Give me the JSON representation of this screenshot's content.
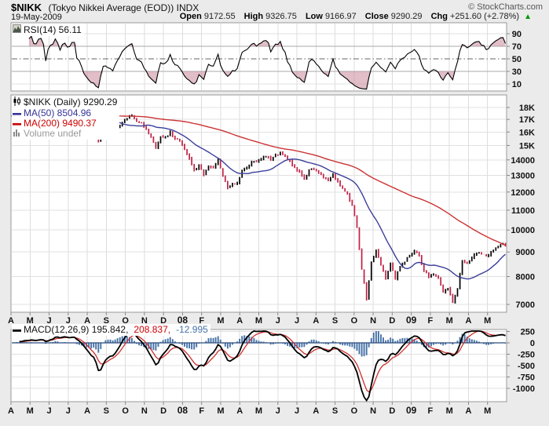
{
  "header": {
    "symbol": "$NIKK",
    "name": "(Tokyo Nikkei Average (EOD)) INDX",
    "date": "19-May-2009",
    "copyright": "© StockCharts.com",
    "quote": [
      {
        "label": "Open",
        "value": "9172.55"
      },
      {
        "label": "High",
        "value": "9326.75"
      },
      {
        "label": "Low",
        "value": "9166.97"
      },
      {
        "label": "Close",
        "value": "9290.29"
      },
      {
        "label": "Chg",
        "value": "+251.60 (+2.78%)"
      }
    ],
    "change_direction": "up"
  },
  "panels": {
    "rsi": {
      "legend": "RSI(14) 56.11"
    },
    "price": {
      "symbol_line": "$NIKK (Daily) 9290.29",
      "ma50_line": "MA(50) 8504.96",
      "ma200_line": "MA(200) 9490.37",
      "volume_line": "Volume undef"
    },
    "macd": {
      "main": "MACD(12,26,9) 195.842,",
      "signal": "208.837,",
      "histogram": "-12.995"
    }
  },
  "colors": {
    "candle_up": "#000000",
    "candle_down": "#bf2145",
    "ma50": "#3a3f99",
    "ma200": "#cc3333",
    "macd_line": "#000000",
    "macd_signal": "#d03030",
    "macd_histogram": "#4572a7",
    "macd_zero_line": "#2b4b7e",
    "rsi_line": "#000000",
    "oversold_fill": "#c9899b",
    "change_up": "#009900"
  },
  "chart_data": [
    {
      "panel": "rsi",
      "type": "line",
      "indicator": "RSI(14)",
      "last_value": 56.11,
      "ylim": [
        0,
        100
      ],
      "yticks": [
        90,
        70,
        50,
        30,
        10
      ],
      "overbought": 70,
      "oversold": 30,
      "midline": 50
    },
    {
      "panel": "price",
      "type": "candlestick",
      "symbol": "$NIKK",
      "timeframe": "Daily",
      "last_close": 9290.29,
      "ma50_last": 8504.96,
      "ma200_last": 9490.37,
      "volume": "undef",
      "log_scale": true,
      "yticks": [
        {
          "label": "18K",
          "value": 18000
        },
        {
          "label": "17K",
          "value": 17000
        },
        {
          "label": "16K",
          "value": 16000
        },
        {
          "label": "15K",
          "value": 15000
        },
        {
          "label": "14000",
          "value": 14000
        },
        {
          "label": "13000",
          "value": 13000
        },
        {
          "label": "12000",
          "value": 12000
        },
        {
          "label": "11000",
          "value": 11000
        },
        {
          "label": "10000",
          "value": 10000
        },
        {
          "label": "9000",
          "value": 9000
        },
        {
          "label": "8000",
          "value": 8000
        },
        {
          "label": "7000",
          "value": 7000
        }
      ],
      "x_labels": [
        "A",
        "M",
        "J",
        "J",
        "A",
        "S",
        "O",
        "N",
        "D",
        "08",
        "F",
        "M",
        "A",
        "M",
        "J",
        "J",
        "A",
        "S",
        "O",
        "N",
        "D",
        "09",
        "F",
        "M",
        "A",
        "M"
      ],
      "closes": [
        17310,
        17450,
        17400,
        17520,
        17600,
        17550,
        17680,
        17480,
        17800,
        18050,
        17900,
        18140,
        18100,
        18240,
        17960,
        17570,
        17150,
        16800,
        15300,
        16250,
        16120,
        15880,
        16310,
        16780,
        17100,
        17330,
        16810,
        16700,
        16260,
        15580,
        14840,
        15680,
        15630,
        16040,
        15510,
        15310,
        14690,
        14110,
        13330,
        13630,
        13020,
        13620,
        13500,
        14030,
        12990,
        12240,
        12480,
        12530,
        13290,
        13480,
        13860,
        13850,
        14050,
        14220,
        14012,
        14340,
        14490,
        14290,
        13940,
        13480,
        13240,
        12800,
        13330,
        13380,
        13170,
        12870,
        12660,
        13070,
        12620,
        12200,
        11890,
        11260,
        10100,
        8280,
        7160,
        8580,
        9080,
        8460,
        7910,
        8510,
        7900,
        8400,
        8590,
        8860,
        9040,
        8840,
        8230,
        7990,
        8080,
        7950,
        7420,
        7570,
        7055,
        7550,
        8630,
        8510,
        8750,
        8960,
        8910,
        8830,
        9000,
        9180,
        9340,
        9290
      ]
    },
    {
      "panel": "macd",
      "type": "line+histogram",
      "indicator": "MACD(12,26,9)",
      "macd_last": 195.842,
      "signal_last": 208.837,
      "hist_last": -12.995,
      "yticks": [
        250,
        0,
        -250,
        -500,
        -750,
        -1000
      ]
    }
  ]
}
